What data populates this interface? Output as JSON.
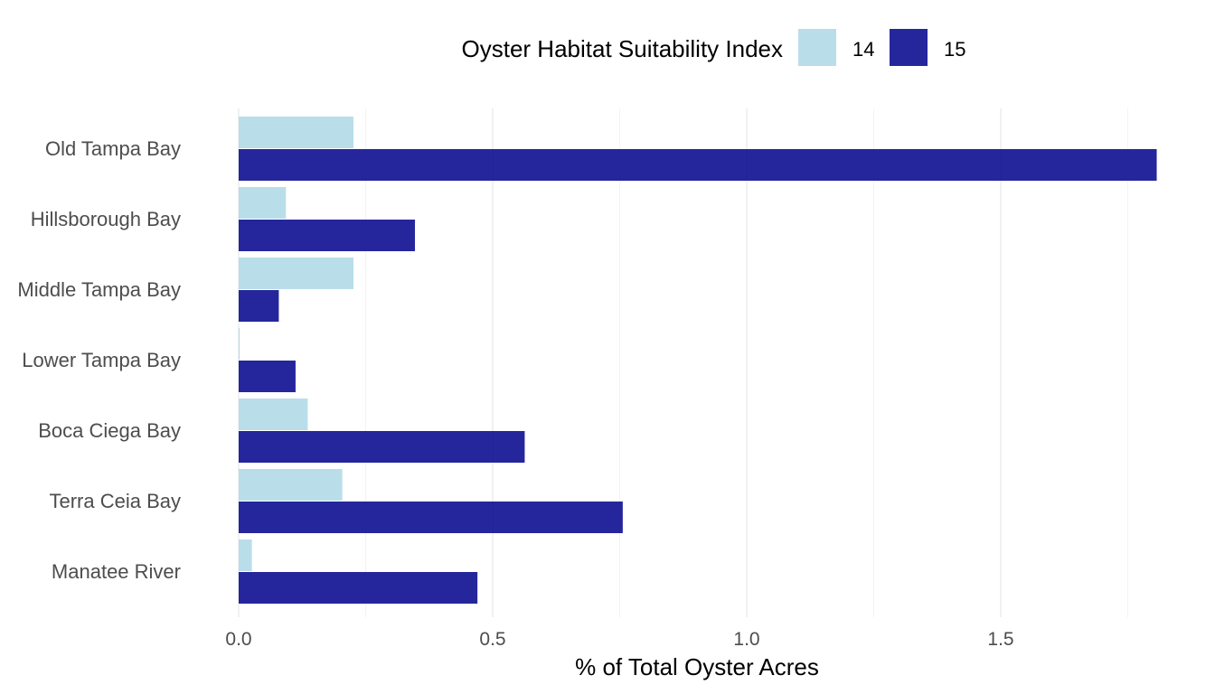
{
  "chart_data": {
    "type": "bar",
    "orientation": "horizontal",
    "categories": [
      "Old Tampa Bay",
      "Hillsborough Bay",
      "Middle Tampa Bay",
      "Lower Tampa Bay",
      "Boca Ciega Bay",
      "Terra Ceia Bay",
      "Manatee River"
    ],
    "series": [
      {
        "name": "14",
        "color": "#add8e6",
        "values": [
          0.226,
          0.093,
          0.226,
          0.002,
          0.136,
          0.204,
          0.026
        ]
      },
      {
        "name": "15",
        "color": "#00008b",
        "values": [
          1.807,
          0.347,
          0.079,
          0.112,
          0.563,
          0.756,
          0.47
        ]
      }
    ],
    "legend_title": "Oyster Habitat Suitability Index",
    "legend_position": "top",
    "xlabel": "% of Total Oyster Acres",
    "ylabel": "",
    "xlim": [
      0,
      1.81
    ],
    "xticks": [
      "0.0",
      "0.5",
      "1.0",
      "1.5"
    ],
    "grid": "vertical"
  }
}
